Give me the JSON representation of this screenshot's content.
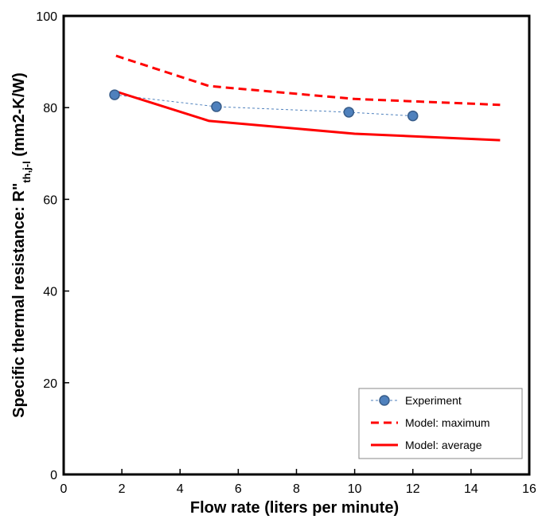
{
  "chart_data": {
    "type": "line",
    "xlabel": "Flow rate (liters per minute)",
    "ylabel": {
      "prefix": "Specific thermal resistance: R\"",
      "subscript": "th,j-l",
      "suffix": " (mm2-K/W)"
    },
    "xlim": [
      0,
      16
    ],
    "ylim": [
      0,
      100
    ],
    "x_ticks": [
      0,
      2,
      4,
      6,
      8,
      10,
      12,
      14,
      16
    ],
    "y_ticks": [
      0,
      20,
      40,
      60,
      80,
      100
    ],
    "grid": false,
    "legend_position": "bottom-right",
    "series": [
      {
        "name": "Experiment",
        "style": "dotted-markers",
        "color": "#4f81bd",
        "marker_color": "#4f81bd",
        "marker_edge": "#385d8a",
        "x": [
          1.75,
          5.25,
          9.8,
          12.0
        ],
        "y": [
          82.8,
          80.2,
          79.0,
          78.2
        ]
      },
      {
        "name": "Model: maximum",
        "style": "dashed",
        "color": "#ff0000",
        "x": [
          1.8,
          5.0,
          10.0,
          15.0
        ],
        "y": [
          91.3,
          84.7,
          81.9,
          80.6
        ]
      },
      {
        "name": "Model: average",
        "style": "solid",
        "color": "#ff0000",
        "x": [
          1.8,
          5.0,
          10.0,
          15.0
        ],
        "y": [
          83.5,
          77.1,
          74.3,
          72.9
        ]
      }
    ]
  }
}
